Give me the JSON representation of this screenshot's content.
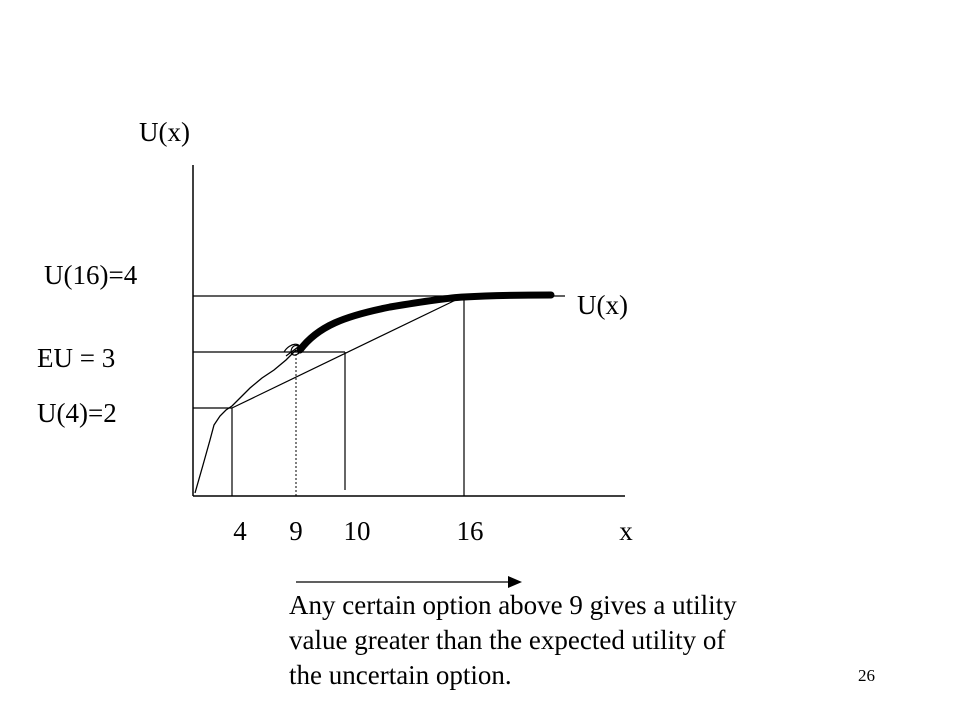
{
  "y_axis_label": "U(x)",
  "curve_label": "U(x)",
  "x_axis_label": "x",
  "y_labels": {
    "u16": "U(16)=4",
    "eu": "EU = 3",
    "u4": "U(4)=2"
  },
  "x_ticks": [
    "4",
    "9",
    "10",
    "16"
  ],
  "note": {
    "line1": "Any certain option above 9 gives a utility",
    "line2": "value greater than the expected utility of",
    "line3": "the uncertain option."
  },
  "page_number": "26",
  "chart_data": {
    "type": "line",
    "function": "U(x) = sqrt(x)",
    "series": [
      {
        "x": [
          0,
          4,
          9,
          16,
          20
        ],
        "y": [
          0,
          2,
          3,
          4,
          4.47
        ]
      }
    ],
    "chord": {
      "x": [
        4,
        16
      ],
      "y": [
        2,
        4
      ]
    },
    "reference_points": [
      {
        "label": "U(4)=2",
        "x": 4,
        "y": 2
      },
      {
        "label": "EU = 3",
        "x": 10,
        "y": 3
      },
      {
        "label": "U(16)=4",
        "x": 16,
        "y": 4
      }
    ],
    "certainty_equivalent": 9,
    "expected_value": 10
  }
}
